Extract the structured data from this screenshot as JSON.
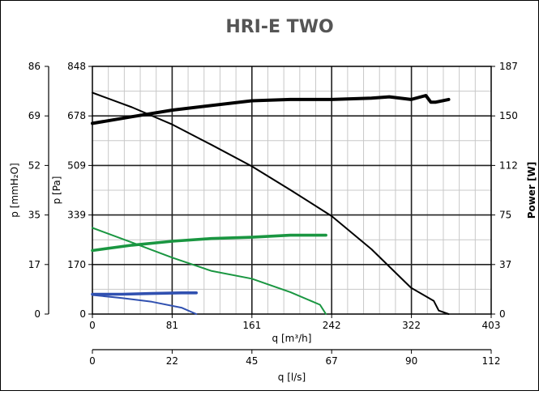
{
  "chart_data": {
    "type": "line",
    "title": "HRI-E TWO",
    "xlabel": "q [m³/h]",
    "xlabel_secondary": "q [l/s]",
    "ylabel_pa": "p [Pa]",
    "ylabel_mmh2o": "p [mmH₂O]",
    "ylabel_power": "Power [W]",
    "xlim": [
      0,
      403
    ],
    "ylim_pa": [
      0,
      848
    ],
    "ylim_mmh2o": [
      0,
      86
    ],
    "ylim_power": [
      0,
      187
    ],
    "xlim_secondary": [
      0,
      112
    ],
    "x_ticks": [
      "0",
      "81",
      "161",
      "242",
      "322",
      "403"
    ],
    "x_secondary_ticks": [
      "0",
      "22",
      "45",
      "67",
      "90",
      "112"
    ],
    "y_pa_ticks": [
      "0",
      "170",
      "339",
      "509",
      "678",
      "848"
    ],
    "y_mmh2o_ticks": [
      "0",
      "17",
      "35",
      "52",
      "69",
      "86"
    ],
    "y_power_ticks": [
      "0",
      "37",
      "75",
      "112",
      "150",
      "187"
    ],
    "grid": true,
    "series": [
      {
        "axis": "pressure",
        "color": "#000000",
        "x": [
          0,
          40,
          80,
          120,
          161,
          200,
          242,
          282,
          322,
          345,
          350,
          360
        ],
        "y": [
          758,
          708,
          650,
          580,
          506,
          425,
          335,
          222,
          90,
          45,
          12,
          0
        ]
      },
      {
        "axis": "power",
        "color": "#000000",
        "x": [
          0,
          40,
          81,
          161,
          200,
          242,
          282,
          300,
          322,
          337,
          342,
          347,
          360
        ],
        "y": [
          144,
          149,
          154,
          161,
          162,
          162,
          163,
          164,
          162,
          165,
          160,
          160,
          162
        ]
      },
      {
        "axis": "pressure",
        "color": "#1a9641",
        "x": [
          0,
          40,
          81,
          120,
          161,
          200,
          230,
          236
        ],
        "y": [
          295,
          245,
          193,
          148,
          121,
          75,
          32,
          0
        ]
      },
      {
        "axis": "power",
        "color": "#1a9641",
        "x": [
          0,
          40,
          81,
          120,
          161,
          200,
          236
        ],
        "y": [
          48,
          52,
          55,
          57,
          58,
          59.5,
          59.5
        ]
      },
      {
        "axis": "pressure",
        "color": "#3050b0",
        "x": [
          0,
          30,
          60,
          90,
          105
        ],
        "y": [
          65,
          55,
          42,
          22,
          0
        ]
      },
      {
        "axis": "power",
        "color": "#3050b0",
        "x": [
          0,
          30,
          60,
          90,
          105
        ],
        "y": [
          15,
          15,
          15.5,
          16,
          16
        ]
      }
    ]
  }
}
